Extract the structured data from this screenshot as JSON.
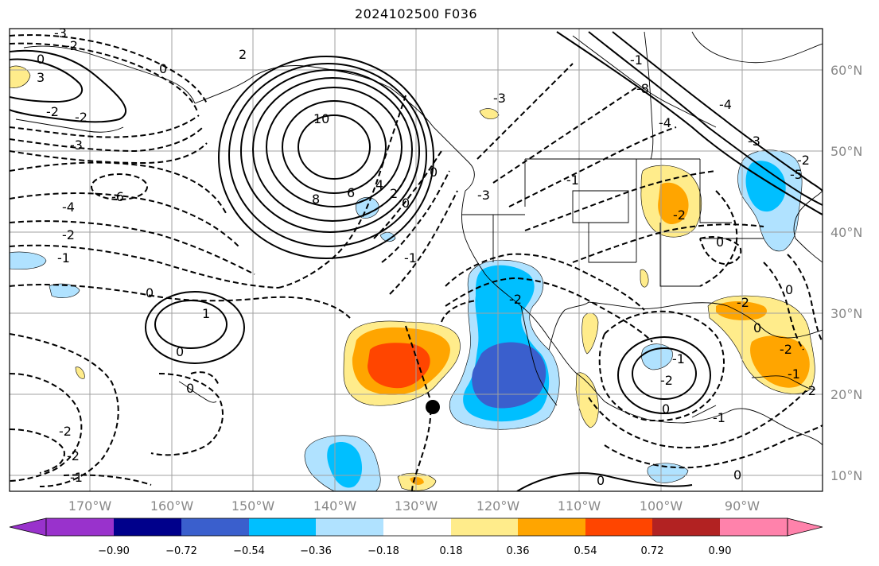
{
  "title": "2024102500 F036",
  "map": {
    "lat_labels": [
      "60°N",
      "50°N",
      "40°N",
      "30°N",
      "20°N",
      "10°N"
    ],
    "lon_labels": [
      "170°W",
      "160°W",
      "150°W",
      "140°W",
      "130°W",
      "120°W",
      "110°W",
      "100°W",
      "90°W"
    ],
    "colors": {
      "neg_090": "#9932cc",
      "neg_072": "#00008b",
      "neg_054": "#3a5fcd",
      "neg_036": "#00bfff",
      "neg_018": "#b0e2ff",
      "neutral": "#ffffff",
      "pos_018": "#ffec8b",
      "pos_036": "#ffa500",
      "pos_054": "#ff4500",
      "pos_072": "#b22222",
      "pos_090": "#ff82ab"
    },
    "contour_labels": [
      {
        "text": "-3"
      },
      {
        "text": "-2"
      },
      {
        "text": "0"
      },
      {
        "text": "3"
      },
      {
        "text": "-2"
      },
      {
        "text": "-2"
      },
      {
        "text": "-3"
      },
      {
        "text": "2"
      },
      {
        "text": "0"
      },
      {
        "text": "10"
      },
      {
        "text": "8"
      },
      {
        "text": "6"
      },
      {
        "text": "4"
      },
      {
        "text": "2"
      },
      {
        "text": "0"
      },
      {
        "text": "-6"
      },
      {
        "text": "-4"
      },
      {
        "text": "-2"
      },
      {
        "text": "-1"
      },
      {
        "text": "0"
      },
      {
        "text": "1"
      },
      {
        "text": "0"
      },
      {
        "text": "0"
      },
      {
        "text": "-2"
      },
      {
        "text": "-2"
      },
      {
        "text": "-1"
      },
      {
        "text": "-3"
      },
      {
        "text": "-3"
      },
      {
        "text": "-1"
      },
      {
        "text": "-1"
      },
      {
        "text": "0"
      },
      {
        "text": "-2"
      },
      {
        "text": "-1"
      },
      {
        "text": "-2"
      },
      {
        "text": "0"
      },
      {
        "text": "0"
      },
      {
        "text": "-2"
      },
      {
        "text": "-2"
      },
      {
        "text": "0"
      },
      {
        "text": "-1"
      },
      {
        "text": "-2"
      },
      {
        "text": "0"
      },
      {
        "text": "0"
      },
      {
        "text": "-4"
      },
      {
        "text": "-3"
      },
      {
        "text": "-1"
      },
      {
        "text": "-8"
      },
      {
        "text": "-4"
      },
      {
        "text": "-5"
      },
      {
        "text": "-2"
      },
      {
        "text": "-1"
      },
      {
        "text": "-2"
      },
      {
        "text": "0"
      }
    ]
  },
  "colorbar": {
    "ticks": [
      "−0.90",
      "−0.72",
      "−0.54",
      "−0.36",
      "−0.18",
      "0.18",
      "0.36",
      "0.54",
      "0.72",
      "0.90"
    ]
  }
}
